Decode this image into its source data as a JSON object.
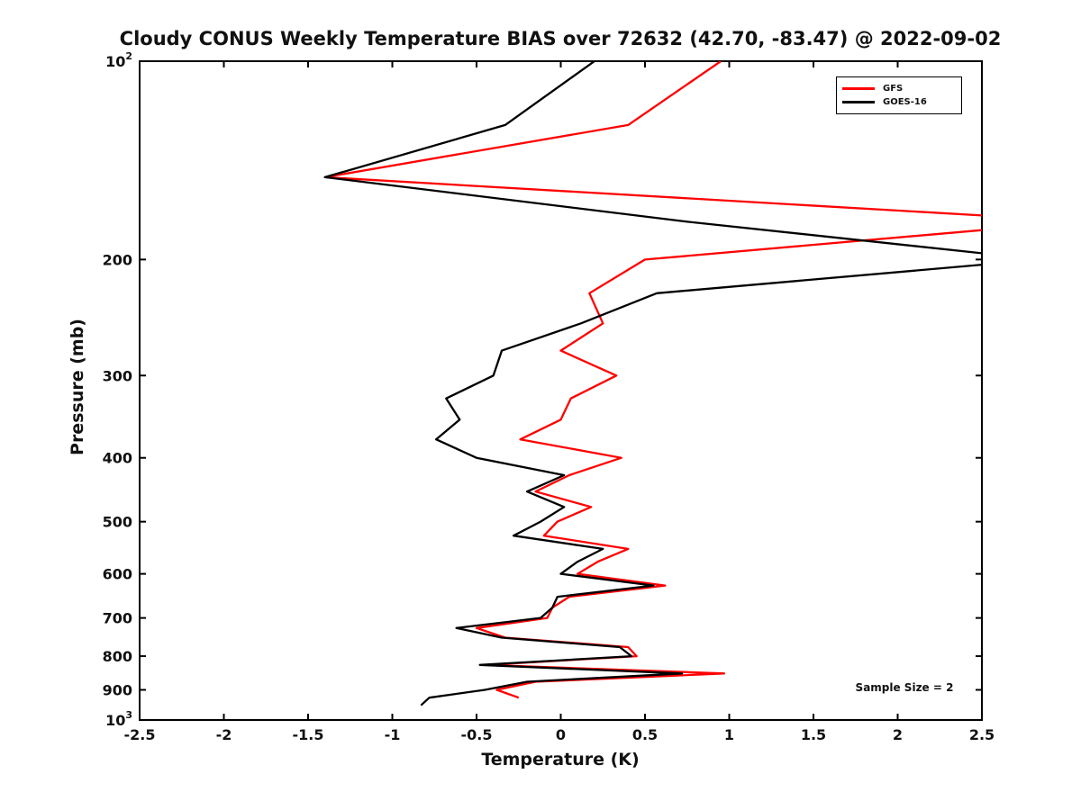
{
  "title": "Cloudy CONUS Weekly Temperature BIAS over 72632 (42.70, -83.47) @ 2022-09-02",
  "annotation": "Sample Size = 2",
  "legend": {
    "entries": [
      {
        "label": "GFS",
        "color": "#ff0000"
      },
      {
        "label": "GOES-16",
        "color": "#000000"
      }
    ]
  },
  "chart_data": {
    "type": "line",
    "title": "Cloudy CONUS Weekly Temperature BIAS over 72632 (42.70, -83.47) @ 2022-09-02",
    "xlabel": "Temperature (K)",
    "ylabel": "Pressure (mb)",
    "xlim": [
      -2.5,
      2.5
    ],
    "ylim": [
      100,
      1000
    ],
    "y_scale": "log",
    "y_inverted": true,
    "grid": false,
    "legend_position": "top-right",
    "axis_color": "#000000",
    "x_ticks": [
      -2.5,
      -2,
      -1.5,
      -1,
      -0.5,
      0,
      0.5,
      1,
      1.5,
      2,
      2.5
    ],
    "y_ticks": [
      {
        "v": 100,
        "label": "10^2"
      },
      {
        "v": 200,
        "label": "200"
      },
      {
        "v": 300,
        "label": "300"
      },
      {
        "v": 400,
        "label": "400"
      },
      {
        "v": 500,
        "label": "500"
      },
      {
        "v": 600,
        "label": "600"
      },
      {
        "v": 700,
        "label": "700"
      },
      {
        "v": 800,
        "label": "800"
      },
      {
        "v": 900,
        "label": "900"
      },
      {
        "v": 1000,
        "label": "10^3"
      }
    ],
    "pressure_levels": [
      100,
      125,
      150,
      175,
      200,
      225,
      250,
      275,
      300,
      325,
      350,
      375,
      400,
      425,
      450,
      475,
      500,
      525,
      550,
      575,
      600,
      625,
      650,
      675,
      700,
      725,
      750,
      775,
      800,
      825,
      850,
      875,
      900,
      925,
      950
    ],
    "series": [
      {
        "name": "GFS",
        "color": "#ff0000",
        "values": [
          0.95,
          0.4,
          -1.4,
          3.1,
          0.5,
          0.17,
          0.25,
          0.0,
          0.33,
          0.06,
          0.0,
          -0.24,
          0.36,
          0.05,
          -0.15,
          0.18,
          -0.02,
          -0.1,
          0.4,
          0.22,
          0.1,
          0.62,
          0.05,
          -0.05,
          -0.08,
          -0.5,
          -0.33,
          0.4,
          0.45,
          -0.45,
          0.97,
          -0.15,
          -0.38,
          -0.25,
          null
        ]
      },
      {
        "name": "GOES-16",
        "color": "#000000",
        "values": [
          0.2,
          -0.33,
          -1.4,
          0.73,
          2.85,
          0.57,
          0.12,
          -0.35,
          -0.4,
          -0.68,
          -0.6,
          -0.74,
          -0.5,
          0.02,
          -0.2,
          0.02,
          -0.12,
          -0.28,
          0.25,
          0.1,
          0.0,
          0.55,
          -0.02,
          -0.05,
          -0.12,
          -0.62,
          -0.35,
          0.35,
          0.42,
          -0.48,
          0.72,
          -0.2,
          -0.45,
          -0.78,
          -0.83
        ]
      }
    ],
    "annotation": "Sample Size = 2"
  }
}
